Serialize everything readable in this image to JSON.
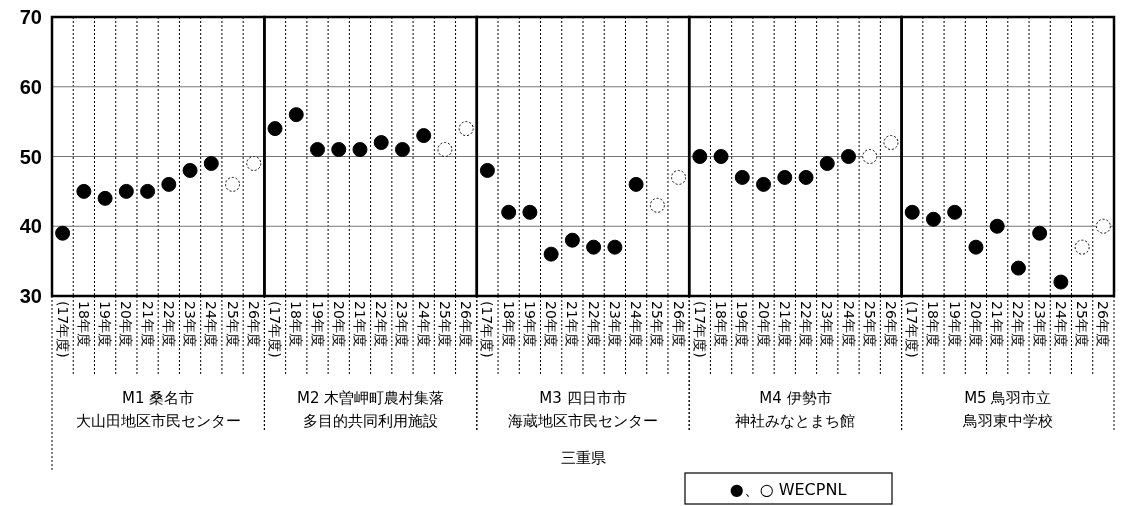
{
  "chart_data": [
    {
      "type": "scatter",
      "categories": [
        "(17年度)",
        "18年度",
        "19年度",
        "20年度",
        "21年度",
        "22年度",
        "23年度",
        "24年度",
        "25年度",
        "26年度"
      ],
      "xlabel": "M1 桑名市",
      "ylim": [
        30,
        70
      ],
      "yticks": [
        30,
        40,
        50,
        60,
        70
      ],
      "grid": true,
      "marker": "circle",
      "annotations": [
        "大山田地区市民センター",
        "三重県",
        "●、○ WECPNL"
      ],
      "series": [
        {
          "color": "#000000",
          "values": [
            39,
            45,
            44,
            45,
            45,
            46,
            48,
            49,
            null,
            null
          ]
        },
        {
          "color": "#000000",
          "line_style": "dotted",
          "values": [
            null,
            null,
            null,
            null,
            null,
            null,
            null,
            null,
            46,
            49
          ]
        }
      ]
    },
    {
      "type": "scatter",
      "categories": [
        "(17年度)",
        "18年度",
        "19年度",
        "20年度",
        "21年度",
        "22年度",
        "23年度",
        "24年度",
        "25年度",
        "26年度"
      ],
      "xlabel": "M2 木曽岬町農村集落",
      "annotations": [
        "多目的共同利用施設"
      ],
      "ylim": [
        30,
        70
      ],
      "yticks": [
        30,
        40,
        50,
        60,
        70
      ],
      "grid": true,
      "marker": "circle",
      "tick_labels": "x",
      "series": [
        {
          "color": "#000000",
          "values": [
            54,
            56,
            51,
            51,
            51,
            52,
            51,
            53,
            null,
            null
          ]
        },
        {
          "color": "#000000",
          "line_style": "dotted",
          "values": [
            null,
            null,
            null,
            null,
            null,
            null,
            null,
            null,
            51,
            54
          ]
        }
      ]
    },
    {
      "type": "scatter",
      "categories": [
        "(17年度)",
        "18年度",
        "19年度",
        "20年度",
        "21年度",
        "22年度",
        "23年度",
        "24年度",
        "25年度",
        "26年度"
      ],
      "xlabel": "M3 四日市市",
      "annotations": [
        "海蔵地区市民センター"
      ],
      "ylim": [
        30,
        70
      ],
      "yticks": [
        30,
        40,
        50,
        60,
        70
      ],
      "grid": true,
      "marker": "circle",
      "tick_labels": "x",
      "series": [
        {
          "color": "#000000",
          "values": [
            48,
            42,
            42,
            36,
            38,
            37,
            37,
            46,
            null,
            null
          ]
        },
        {
          "color": "#000000",
          "line_style": "dotted",
          "values": [
            null,
            null,
            null,
            null,
            null,
            null,
            null,
            null,
            43,
            47
          ]
        }
      ]
    },
    {
      "type": "scatter",
      "categories": [
        "(17年度)",
        "18年度",
        "19年度",
        "20年度",
        "21年度",
        "22年度",
        "23年度",
        "24年度",
        "25年度",
        "26年度"
      ],
      "xlabel": "M4 伊勢市",
      "annotations": [
        "神社みなとまち館"
      ],
      "ylim": [
        30,
        70
      ],
      "yticks": [
        30,
        40,
        50,
        60,
        70
      ],
      "grid": true,
      "marker": "circle",
      "tick_labels": "x",
      "series": [
        {
          "color": "#000000",
          "values": [
            50,
            50,
            47,
            46,
            47,
            47,
            49,
            50,
            null,
            null
          ]
        },
        {
          "color": "#000000",
          "line_style": "dotted",
          "values": [
            null,
            null,
            null,
            null,
            null,
            null,
            null,
            null,
            50,
            52
          ]
        }
      ]
    },
    {
      "type": "scatter",
      "categories": [
        "(17年度)",
        "18年度",
        "19年度",
        "20年度",
        "21年度",
        "22年度",
        "23年度",
        "24年度",
        "25年度",
        "26年度"
      ],
      "xlabel": "M5 鳥羽市立",
      "annotations": [
        "鳥羽東中学校"
      ],
      "ylim": [
        30,
        70
      ],
      "yticks": [
        30,
        40,
        50,
        60,
        70
      ],
      "grid": true,
      "marker": "circle",
      "tick_labels": "x",
      "series": [
        {
          "color": "#000000",
          "values": [
            42,
            41,
            42,
            37,
            40,
            34,
            39,
            32,
            null,
            null
          ]
        },
        {
          "color": "#000000",
          "line_style": "dotted",
          "values": [
            null,
            null,
            null,
            null,
            null,
            null,
            null,
            null,
            37,
            40
          ]
        }
      ]
    }
  ]
}
